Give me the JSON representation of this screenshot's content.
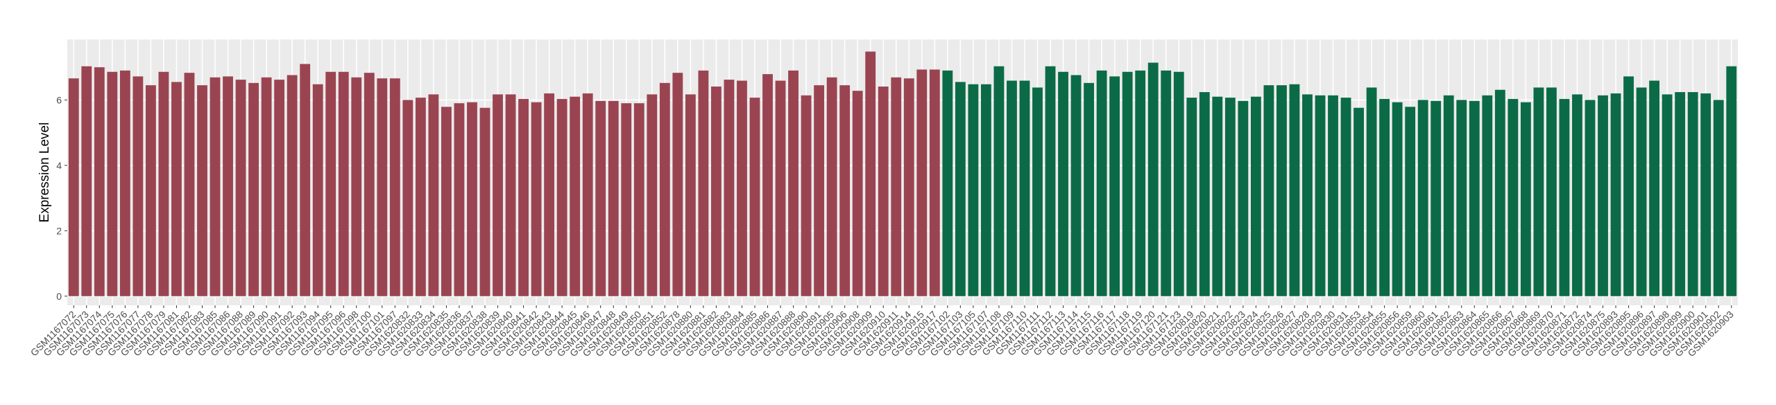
{
  "chart_data": {
    "type": "bar",
    "y_label": "Expression Level",
    "categories": [
      "GSM1167072",
      "GSM1167073",
      "GSM1167074",
      "GSM1167075",
      "GSM1167076",
      "GSM1167077",
      "GSM1167078",
      "GSM1167079",
      "GSM1167081",
      "GSM1167082",
      "GSM1167083",
      "GSM1167085",
      "GSM1167086",
      "GSM1167088",
      "GSM1167089",
      "GSM1167090",
      "GSM1167091",
      "GSM1167092",
      "GSM1167093",
      "GSM1167094",
      "GSM1167095",
      "GSM1167096",
      "GSM1167098",
      "GSM1167100",
      "GSM1167101",
      "GSM1167097",
      "GSM1620832",
      "GSM1620833",
      "GSM1620834",
      "GSM1620835",
      "GSM1620836",
      "GSM1620837",
      "GSM1620838",
      "GSM1620839",
      "GSM1620840",
      "GSM1620841",
      "GSM1620842",
      "GSM1620843",
      "GSM1620844",
      "GSM1620845",
      "GSM1620846",
      "GSM1620847",
      "GSM1620848",
      "GSM1620849",
      "GSM1620850",
      "GSM1620851",
      "GSM1620852",
      "GSM1620878",
      "GSM1620880",
      "GSM1620881",
      "GSM1620882",
      "GSM1620883",
      "GSM1620884",
      "GSM1620885",
      "GSM1620886",
      "GSM1620887",
      "GSM1620888",
      "GSM1620890",
      "GSM1620891",
      "GSM1620905",
      "GSM1620906",
      "GSM1620908",
      "GSM1620909",
      "GSM1620910",
      "GSM1620911",
      "GSM1620914",
      "GSM1620915",
      "GSM1620917",
      "GSM1167102",
      "GSM1167103",
      "GSM1167105",
      "GSM1167107",
      "GSM1167108",
      "GSM1167109",
      "GSM1167110",
      "GSM1167111",
      "GSM1167112",
      "GSM1167113",
      "GSM1167114",
      "GSM1167115",
      "GSM1167116",
      "GSM1167117",
      "GSM1167118",
      "GSM1167119",
      "GSM1167120",
      "GSM1167121",
      "GSM1167123",
      "GSM1620819",
      "GSM1620820",
      "GSM1620821",
      "GSM1620822",
      "GSM1620823",
      "GSM1620824",
      "GSM1620825",
      "GSM1620826",
      "GSM1620827",
      "GSM1620828",
      "GSM1620829",
      "GSM1620830",
      "GSM1620831",
      "GSM1620853",
      "GSM1620854",
      "GSM1620855",
      "GSM1620856",
      "GSM1620859",
      "GSM1620860",
      "GSM1620861",
      "GSM1620862",
      "GSM1620863",
      "GSM1620864",
      "GSM1620865",
      "GSM1620866",
      "GSM1620867",
      "GSM1620868",
      "GSM1620869",
      "GSM1620870",
      "GSM1620871",
      "GSM1620872",
      "GSM1620874",
      "GSM1620875",
      "GSM1620893",
      "GSM1620895",
      "GSM1620896",
      "GSM1620897",
      "GSM1620898",
      "GSM1620899",
      "GSM1620900",
      "GSM1620901",
      "GSM1620902",
      "GSM1620903"
    ],
    "values": [
      6.66,
      7.03,
      7.0,
      6.86,
      6.9,
      6.72,
      6.45,
      6.86,
      6.55,
      6.83,
      6.45,
      6.69,
      6.72,
      6.62,
      6.52,
      6.69,
      6.62,
      6.76,
      7.1,
      6.48,
      6.86,
      6.86,
      6.69,
      6.83,
      6.66,
      6.66,
      6.0,
      6.07,
      6.17,
      5.79,
      5.9,
      5.93,
      5.76,
      6.17,
      6.17,
      6.03,
      5.93,
      6.2,
      6.03,
      6.1,
      6.2,
      5.97,
      5.97,
      5.9,
      5.9,
      6.17,
      6.52,
      6.83,
      6.17,
      6.9,
      6.41,
      6.62,
      6.59,
      6.07,
      6.79,
      6.59,
      6.9,
      6.14,
      6.45,
      6.69,
      6.45,
      6.28,
      7.48,
      6.41,
      6.69,
      6.66,
      6.93,
      6.93,
      6.9,
      6.55,
      6.48,
      6.48,
      7.03,
      6.59,
      6.59,
      6.38,
      7.03,
      6.86,
      6.76,
      6.52,
      6.9,
      6.72,
      6.86,
      6.9,
      7.14,
      6.9,
      6.86,
      6.07,
      6.24,
      6.1,
      6.07,
      5.97,
      6.1,
      6.45,
      6.45,
      6.48,
      6.17,
      6.14,
      6.14,
      6.07,
      5.76,
      6.38,
      6.03,
      5.93,
      5.79,
      6.0,
      5.97,
      6.14,
      6.0,
      5.97,
      6.14,
      6.31,
      6.03,
      5.93,
      6.38,
      6.38,
      6.03,
      6.17,
      6.0,
      6.14,
      6.2,
      6.72,
      6.38,
      6.59,
      6.17,
      6.24,
      6.24,
      6.2,
      6.0,
      7.03
    ],
    "colors": [
      "#9b4451",
      "#9b4451",
      "#9b4451",
      "#9b4451",
      "#9b4451",
      "#9b4451",
      "#9b4451",
      "#9b4451",
      "#9b4451",
      "#9b4451",
      "#9b4451",
      "#9b4451",
      "#9b4451",
      "#9b4451",
      "#9b4451",
      "#9b4451",
      "#9b4451",
      "#9b4451",
      "#9b4451",
      "#9b4451",
      "#9b4451",
      "#9b4451",
      "#9b4451",
      "#9b4451",
      "#9b4451",
      "#9b4451",
      "#9b4451",
      "#9b4451",
      "#9b4451",
      "#9b4451",
      "#9b4451",
      "#9b4451",
      "#9b4451",
      "#9b4451",
      "#9b4451",
      "#9b4451",
      "#9b4451",
      "#9b4451",
      "#9b4451",
      "#9b4451",
      "#9b4451",
      "#9b4451",
      "#9b4451",
      "#9b4451",
      "#9b4451",
      "#9b4451",
      "#9b4451",
      "#9b4451",
      "#9b4451",
      "#9b4451",
      "#9b4451",
      "#9b4451",
      "#9b4451",
      "#9b4451",
      "#9b4451",
      "#9b4451",
      "#9b4451",
      "#9b4451",
      "#9b4451",
      "#9b4451",
      "#9b4451",
      "#9b4451",
      "#9b4451",
      "#9b4451",
      "#9b4451",
      "#9b4451",
      "#9b4451",
      "#9b4451",
      "#0b6b47",
      "#0b6b47",
      "#0b6b47",
      "#0b6b47",
      "#0b6b47",
      "#0b6b47",
      "#0b6b47",
      "#0b6b47",
      "#0b6b47",
      "#0b6b47",
      "#0b6b47",
      "#0b6b47",
      "#0b6b47",
      "#0b6b47",
      "#0b6b47",
      "#0b6b47",
      "#0b6b47",
      "#0b6b47",
      "#0b6b47",
      "#0b6b47",
      "#0b6b47",
      "#0b6b47",
      "#0b6b47",
      "#0b6b47",
      "#0b6b47",
      "#0b6b47",
      "#0b6b47",
      "#0b6b47",
      "#0b6b47",
      "#0b6b47",
      "#0b6b47",
      "#0b6b47",
      "#0b6b47",
      "#0b6b47",
      "#0b6b47",
      "#0b6b47",
      "#0b6b47",
      "#0b6b47",
      "#0b6b47",
      "#0b6b47",
      "#0b6b47",
      "#0b6b47",
      "#0b6b47",
      "#0b6b47",
      "#0b6b47",
      "#0b6b47",
      "#0b6b47",
      "#0b6b47",
      "#0b6b47",
      "#0b6b47",
      "#0b6b47",
      "#0b6b47",
      "#0b6b47",
      "#0b6b47",
      "#0b6b47",
      "#0b6b47",
      "#0b6b47",
      "#0b6b47",
      "#0b6b47",
      "#0b6b47",
      "#0b6b47",
      "#0b6b47"
    ],
    "ylim": [
      -0.28,
      7.85
    ],
    "yticks": [
      0,
      2,
      4,
      6
    ],
    "grid": true
  }
}
